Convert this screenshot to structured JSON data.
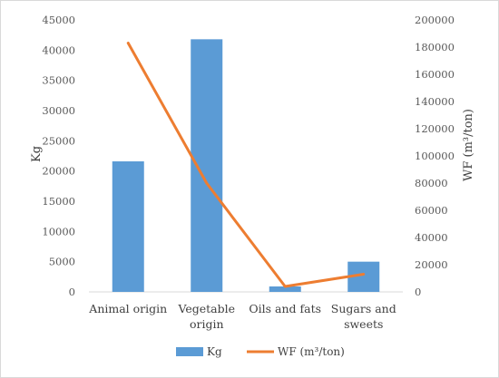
{
  "chart_data": {
    "type": "bar",
    "categories": [
      "Animal origin",
      "Vegetable origin",
      "Oils and fats",
      "Sugars and sweets"
    ],
    "category_label_lines": [
      [
        "Animal origin"
      ],
      [
        "Vegetable",
        "origin"
      ],
      [
        "Oils and fats"
      ],
      [
        "Sugars and",
        "sweets"
      ]
    ],
    "series": [
      {
        "name": "Kg",
        "type": "bar",
        "axis": "left",
        "color": "#5b9bd5",
        "values": [
          21600,
          41800,
          900,
          5000
        ]
      },
      {
        "name": "WF (m³/ton)",
        "type": "line",
        "axis": "right",
        "color": "#ed7d31",
        "values": [
          183000,
          80000,
          4000,
          13000
        ]
      }
    ],
    "y_left": {
      "label": "Kg",
      "ylim": [
        0,
        45000
      ],
      "ticks": [
        0,
        5000,
        10000,
        15000,
        20000,
        25000,
        30000,
        35000,
        40000,
        45000
      ]
    },
    "y_right": {
      "label": "WF (m³/ton)",
      "ylim": [
        0,
        200000
      ],
      "ticks": [
        0,
        20000,
        40000,
        60000,
        80000,
        100000,
        120000,
        140000,
        160000,
        180000,
        200000
      ]
    },
    "grid": false,
    "legend": {
      "placement": "bottom",
      "entries": [
        "Kg",
        "WF (m³/ton)"
      ]
    }
  }
}
